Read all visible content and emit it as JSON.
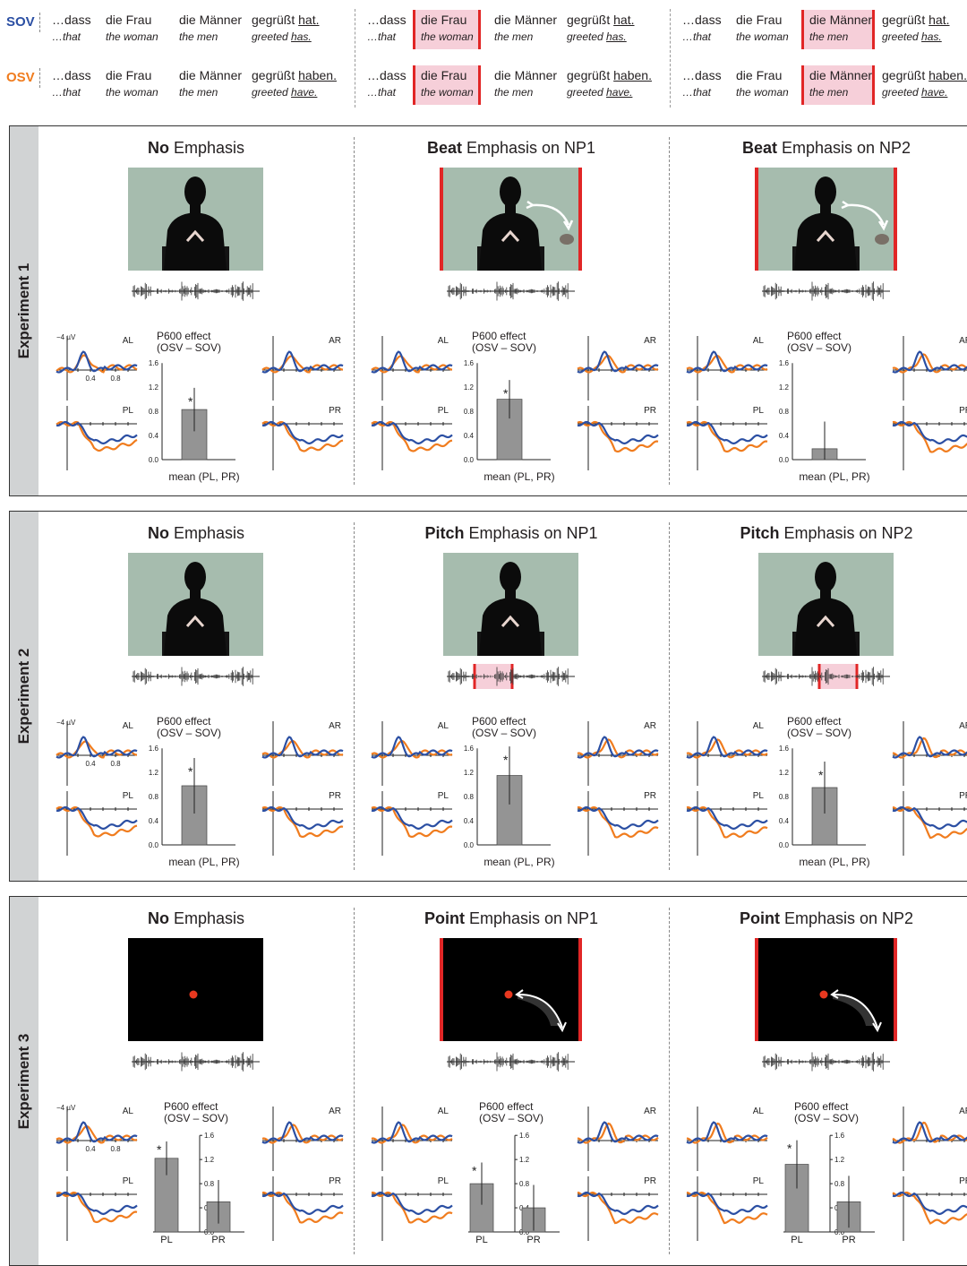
{
  "sentences": {
    "sov_label": "SOV",
    "osv_label": "OSV",
    "words": {
      "dass": "…dass",
      "that": "…that",
      "frau": "die Frau",
      "frau_en": "the woman",
      "maenner": "die Männer",
      "maenner_en": "the men",
      "verb": "gegrüßt",
      "hat": "hat.",
      "haben": "haben.",
      "greeted": "greeted",
      "has": "has.",
      "have": "have."
    }
  },
  "experiments": [
    {
      "label": "Experiment 1",
      "conditions": [
        {
          "bold": "No",
          "rest": " Emphasis",
          "highlight": "none",
          "bar_effect": 0.83,
          "bar_err": 0.36,
          "significant": true
        },
        {
          "bold": "Beat",
          "rest": " Emphasis on NP1",
          "highlight": "np1",
          "bar_effect": 1.0,
          "bar_err": 0.32,
          "significant": true
        },
        {
          "bold": "Beat",
          "rest": " Emphasis on NP2",
          "highlight": "np2",
          "bar_effect": 0.18,
          "bar_err": 0.45,
          "significant": false
        }
      ]
    },
    {
      "label": "Experiment 2",
      "conditions": [
        {
          "bold": "No",
          "rest": " Emphasis",
          "highlight": "none",
          "bar_effect": 0.98,
          "bar_err": 0.46,
          "significant": true
        },
        {
          "bold": "Pitch",
          "rest": " Emphasis on NP1",
          "highlight": "np1",
          "bar_effect": 1.15,
          "bar_err": 0.48,
          "significant": true
        },
        {
          "bold": "Pitch",
          "rest": " Emphasis on NP2",
          "highlight": "np2",
          "bar_effect": 0.95,
          "bar_err": 0.43,
          "significant": true
        }
      ]
    },
    {
      "label": "Experiment 3",
      "conditions": [
        {
          "bold": "No",
          "rest": " Emphasis",
          "highlight": "none",
          "pl": 1.22,
          "pl_err": 0.28,
          "pr": 0.5,
          "pr_err": 0.36
        },
        {
          "bold": "Point",
          "rest": " Emphasis on NP1",
          "highlight": "np1",
          "pl": 0.8,
          "pl_err": 0.35,
          "pr": 0.4,
          "pr_err": 0.38
        },
        {
          "bold": "Point",
          "rest": " Emphasis on NP2",
          "highlight": "np2",
          "pl": 1.12,
          "pl_err": 0.4,
          "pr": 0.5,
          "pr_err": 0.43
        }
      ]
    }
  ],
  "plot_text": {
    "effect_title_1": "P600 effect",
    "effect_title_2": "(OSV – SOV)",
    "mean_label": "mean (PL, PR)",
    "pl": "PL",
    "pr": "PR",
    "al": "AL",
    "ar": "AR",
    "uv": "−4 µV",
    "ticks": [
      "0.0",
      "0.4",
      "0.8",
      "1.2",
      "1.6"
    ],
    "time_ticks": [
      "0.4",
      "0.8"
    ],
    "star": "*"
  },
  "colors": {
    "sov": "#2b4fa3",
    "osv": "#f07c1e",
    "highlight": "#e12626",
    "bar": "#949494"
  },
  "chart_data": [
    {
      "type": "bar",
      "title": "P600 effect (OSV – SOV)",
      "categories": [
        "mean (PL, PR)"
      ],
      "series": [
        {
          "values": [
            0.83
          ]
        }
      ],
      "ylim": [
        0,
        1.6
      ]
    },
    {
      "type": "bar",
      "title": "P600 effect (OSV – SOV)",
      "categories": [
        "mean (PL, PR)"
      ],
      "series": [
        {
          "values": [
            1.0
          ]
        }
      ],
      "ylim": [
        0,
        1.6
      ]
    },
    {
      "type": "bar",
      "title": "P600 effect (OSV – SOV)",
      "categories": [
        "mean (PL, PR)"
      ],
      "series": [
        {
          "values": [
            0.18
          ]
        }
      ],
      "ylim": [
        0,
        1.6
      ]
    },
    {
      "type": "bar",
      "title": "P600 effect (OSV – SOV)",
      "categories": [
        "mean (PL, PR)"
      ],
      "series": [
        {
          "values": [
            0.98
          ]
        }
      ],
      "ylim": [
        0,
        1.6
      ]
    },
    {
      "type": "bar",
      "title": "P600 effect (OSV – SOV)",
      "categories": [
        "mean (PL, PR)"
      ],
      "series": [
        {
          "values": [
            1.15
          ]
        }
      ],
      "ylim": [
        0,
        1.6
      ]
    },
    {
      "type": "bar",
      "title": "P600 effect (OSV – SOV)",
      "categories": [
        "mean (PL, PR)"
      ],
      "series": [
        {
          "values": [
            0.95
          ]
        }
      ],
      "ylim": [
        0,
        1.6
      ]
    },
    {
      "type": "bar",
      "title": "P600 effect (OSV – SOV)",
      "categories": [
        "PL",
        "PR"
      ],
      "series": [
        {
          "values": [
            1.22,
            0.5
          ]
        }
      ],
      "ylim": [
        0,
        1.6
      ]
    },
    {
      "type": "bar",
      "title": "P600 effect (OSV – SOV)",
      "categories": [
        "PL",
        "PR"
      ],
      "series": [
        {
          "values": [
            0.8,
            0.4
          ]
        }
      ],
      "ylim": [
        0,
        1.6
      ]
    },
    {
      "type": "bar",
      "title": "P600 effect (OSV – SOV)",
      "categories": [
        "PL",
        "PR"
      ],
      "series": [
        {
          "values": [
            1.12,
            0.5
          ]
        }
      ],
      "ylim": [
        0,
        1.6
      ]
    }
  ]
}
